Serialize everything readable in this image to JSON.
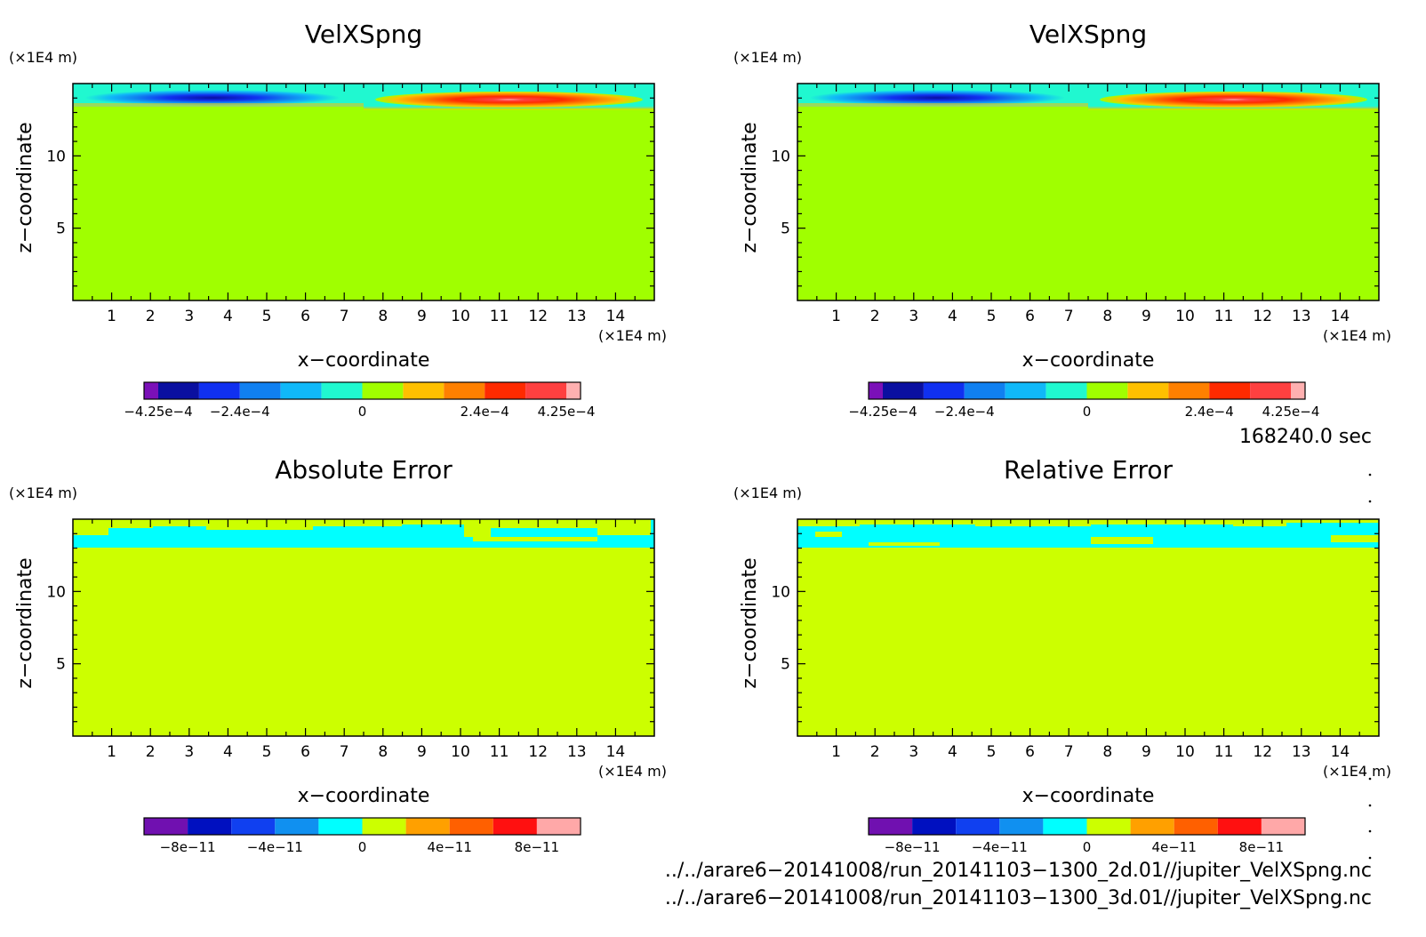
{
  "chart_data": [
    {
      "type": "heatmap",
      "title": "VelXSpng",
      "xlabel": "x−coordinate",
      "ylabel": "z−coordinate",
      "x_unit": "(×1E4 m)",
      "y_unit": "(×1E4 m)",
      "xlim": [
        0,
        15
      ],
      "ylim": [
        0,
        15
      ],
      "x_ticks": [
        "1",
        "2",
        "3",
        "4",
        "5",
        "6",
        "7",
        "8",
        "9",
        "10",
        "11",
        "12",
        "13",
        "14"
      ],
      "y_ticks": [
        "5",
        "10"
      ],
      "field": "sponge",
      "colorbar": {
        "colors": [
          "#7b10b8",
          "#0a0fa0",
          "#1030f0",
          "#1080f0",
          "#10b8f8",
          "#20f8d0",
          "#a0ff00",
          "#ffc000",
          "#ff8000",
          "#ff2a00",
          "#ff4040",
          "#ffb0b0"
        ],
        "labels": [
          "−4.25e−4",
          "−2.4e−4",
          "0",
          "2.4e−4",
          "4.25e−4"
        ]
      }
    },
    {
      "type": "heatmap",
      "title": "VelXSpng",
      "xlabel": "x−coordinate",
      "ylabel": "z−coordinate",
      "x_unit": "(×1E4 m)",
      "y_unit": "(×1E4 m)",
      "xlim": [
        0,
        15
      ],
      "ylim": [
        0,
        15
      ],
      "x_ticks": [
        "1",
        "2",
        "3",
        "4",
        "5",
        "6",
        "7",
        "8",
        "9",
        "10",
        "11",
        "12",
        "13",
        "14"
      ],
      "y_ticks": [
        "5",
        "10"
      ],
      "field": "sponge",
      "colorbar": {
        "colors": [
          "#7b10b8",
          "#0a0fa0",
          "#1030f0",
          "#1080f0",
          "#10b8f8",
          "#20f8d0",
          "#a0ff00",
          "#ffc000",
          "#ff8000",
          "#ff2a00",
          "#ff4040",
          "#ffb0b0"
        ],
        "labels": [
          "−4.25e−4",
          "−2.4e−4",
          "0",
          "2.4e−4",
          "4.25e−4"
        ]
      }
    },
    {
      "type": "heatmap",
      "title": "Absolute Error",
      "xlabel": "x−coordinate",
      "ylabel": "z−coordinate",
      "x_unit": "(×1E4 m)",
      "y_unit": "(×1E4 m)",
      "xlim": [
        0,
        15
      ],
      "ylim": [
        0,
        15
      ],
      "x_ticks": [
        "1",
        "2",
        "3",
        "4",
        "5",
        "6",
        "7",
        "8",
        "9",
        "10",
        "11",
        "12",
        "13",
        "14"
      ],
      "y_ticks": [
        "5",
        "10"
      ],
      "field": "abs_error",
      "colorbar": {
        "colors": [
          "#7010b0",
          "#0010c0",
          "#1040f0",
          "#1090f0",
          "#00ffff",
          "#ccff00",
          "#ffa000",
          "#ff6000",
          "#ff1010",
          "#ffa8a8"
        ],
        "labels": [
          "−8e−11",
          "−4e−11",
          "0",
          "4e−11",
          "8e−11"
        ]
      }
    },
    {
      "type": "heatmap",
      "title": "Relative Error",
      "xlabel": "x−coordinate",
      "ylabel": "z−coordinate",
      "x_unit": "(×1E4 m)",
      "y_unit": "(×1E4 m)",
      "xlim": [
        0,
        15
      ],
      "ylim": [
        0,
        15
      ],
      "x_ticks": [
        "1",
        "2",
        "3",
        "4",
        "5",
        "6",
        "7",
        "8",
        "9",
        "10",
        "11",
        "12",
        "13",
        "14"
      ],
      "y_ticks": [
        "5",
        "10"
      ],
      "field": "rel_error",
      "colorbar": {
        "colors": [
          "#7010b0",
          "#0010c0",
          "#1040f0",
          "#1090f0",
          "#00ffff",
          "#ccff00",
          "#ffa000",
          "#ff6000",
          "#ff1010",
          "#ffa8a8"
        ],
        "labels": [
          "−8e−11",
          "−4e−11",
          "0",
          "4e−11",
          "8e−11"
        ]
      }
    }
  ],
  "time_label": "168240.0 sec",
  "footer": [
    "../../arare6−20141008/run_20141103−1300_2d.01//jupiter_VelXSpng.nc",
    "../../arare6−20141008/run_20141103−1300_3d.01//jupiter_VelXSpng.nc"
  ]
}
